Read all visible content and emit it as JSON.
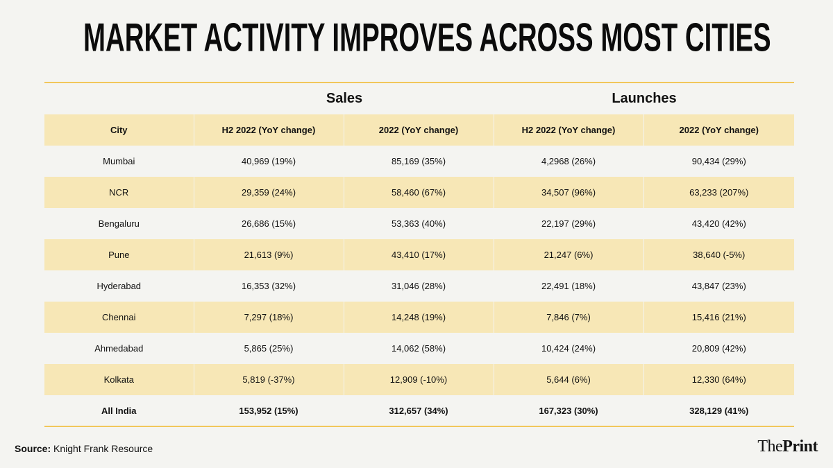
{
  "title": "MARKET ACTIVITY IMPROVES ACROSS MOST CITIES",
  "groups": {
    "sales": "Sales",
    "launches": "Launches"
  },
  "columns": [
    "City",
    "H2 2022 (YoY change)",
    "2022 (YoY change)",
    "H2 2022 (YoY change)",
    "2022 (YoY change)"
  ],
  "rows": [
    [
      "Mumbai",
      "40,969 (19%)",
      "85,169 (35%)",
      "4,2968 (26%)",
      "90,434 (29%)"
    ],
    [
      "NCR",
      "29,359 (24%)",
      "58,460 (67%)",
      "34,507 (96%)",
      "63,233 (207%)"
    ],
    [
      "Bengaluru",
      "26,686 (15%)",
      "53,363 (40%)",
      "22,197 (29%)",
      "43,420 (42%)"
    ],
    [
      "Pune",
      "21,613 (9%)",
      "43,410 (17%)",
      "21,247 (6%)",
      "38,640 (-5%)"
    ],
    [
      "Hyderabad",
      "16,353 (32%)",
      "31,046 (28%)",
      "22,491 (18%)",
      "43,847 (23%)"
    ],
    [
      "Chennai",
      "7,297 (18%)",
      "14,248 (19%)",
      "7,846 (7%)",
      "15,416 (21%)"
    ],
    [
      "Ahmedabad",
      "5,865 (25%)",
      "14,062 (58%)",
      "10,424 (24%)",
      "20,809 (42%)"
    ],
    [
      "Kolkata",
      "5,819 (-37%)",
      "12,909 (-10%)",
      "5,644 (6%)",
      "12,330 (64%)"
    ],
    [
      "All India",
      "153,952 (15%)",
      "312,657 (34%)",
      "167,323 (30%)",
      "328,129 (41%)"
    ]
  ],
  "footer": {
    "source_label": "Source:",
    "source_text": "Knight Frank Resource",
    "brand_light": "The",
    "brand_bold": "Print"
  },
  "colors": {
    "accent": "#f1c75b",
    "shade": "#f7e7b6",
    "background": "#f4f4f1"
  }
}
